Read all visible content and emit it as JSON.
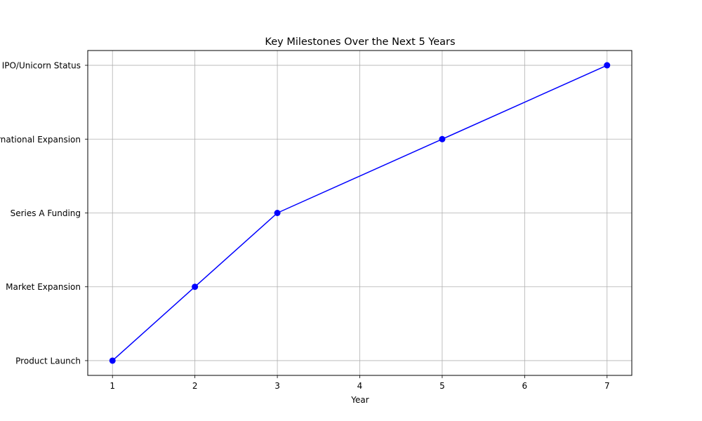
{
  "chart_data": {
    "type": "line",
    "title": "Key Milestones Over the Next 5 Years",
    "xlabel": "Year",
    "ylabel": "",
    "x": [
      1,
      2,
      3,
      5,
      7
    ],
    "y_categories": [
      "Product Launch",
      "Market Expansion",
      "Series A Funding",
      "International Expansion",
      "IPO/Unicorn Status"
    ],
    "x_ticks": [
      1,
      2,
      3,
      4,
      5,
      6,
      7
    ],
    "xlim": [
      0.7,
      7.3
    ],
    "series": [
      {
        "values": [
          "Product Launch",
          "Market Expansion",
          "Series A Funding",
          "International Expansion",
          "IPO/Unicorn Status"
        ],
        "color": "#0000ff",
        "marker": "circle"
      }
    ],
    "grid": true,
    "legend": "none"
  }
}
